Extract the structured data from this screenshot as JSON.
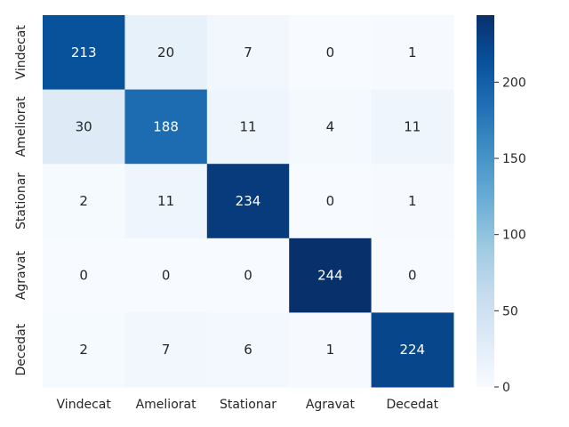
{
  "chart_data": {
    "type": "heatmap",
    "title": "",
    "xlabel": "",
    "ylabel": "",
    "x_categories": [
      "Vindecat",
      "Ameliorat",
      "Stationar",
      "Agravat",
      "Decedat"
    ],
    "y_categories": [
      "Vindecat",
      "Ameliorat",
      "Stationar",
      "Agravat",
      "Decedat"
    ],
    "values": [
      [
        213,
        20,
        7,
        0,
        1
      ],
      [
        30,
        188,
        11,
        4,
        11
      ],
      [
        2,
        11,
        234,
        0,
        1
      ],
      [
        0,
        0,
        0,
        244,
        0
      ],
      [
        2,
        7,
        6,
        1,
        224
      ]
    ],
    "colormap": "Blues",
    "color_range": [
      0,
      244
    ],
    "colorbar_ticks": [
      "0",
      "50",
      "100",
      "150",
      "200"
    ],
    "annotations": true,
    "grid": false
  }
}
